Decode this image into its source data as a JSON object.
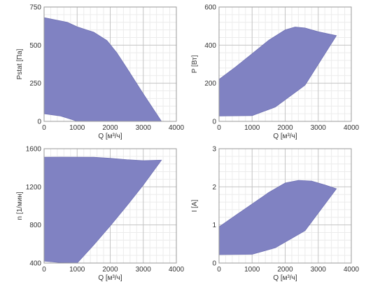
{
  "chart_data": [
    {
      "type": "area",
      "xlabel": "Q [м³/ч]",
      "ylabel": "Pstat [Па]",
      "xlim": [
        0,
        4000
      ],
      "ylim": [
        0,
        750
      ],
      "xticks": [
        0,
        1000,
        2000,
        3000,
        4000
      ],
      "yticks": [
        0,
        250,
        500,
        750
      ],
      "grid": true,
      "fill_color": "#8082c2",
      "upper": {
        "x": [
          0,
          700,
          1000,
          1500,
          1900,
          2200,
          2500,
          3000,
          3550
        ],
        "y": [
          680,
          650,
          620,
          585,
          530,
          450,
          350,
          180,
          0
        ]
      },
      "lower": {
        "x": [
          0,
          500,
          800,
          1000,
          3550
        ],
        "y": [
          50,
          35,
          15,
          0,
          0
        ]
      }
    },
    {
      "type": "area",
      "xlabel": "Q [м³/ч]",
      "ylabel": "P [Вт]",
      "xlim": [
        0,
        4000
      ],
      "ylim": [
        0,
        600
      ],
      "xticks": [
        0,
        1000,
        2000,
        3000,
        4000
      ],
      "yticks": [
        0,
        200,
        400,
        600
      ],
      "grid": true,
      "fill_color": "#8082c2",
      "upper": {
        "x": [
          0,
          500,
          1000,
          1500,
          2000,
          2300,
          2600,
          3000,
          3550
        ],
        "y": [
          220,
          285,
          355,
          425,
          480,
          495,
          490,
          470,
          450
        ]
      },
      "lower": {
        "x": [
          0,
          1000,
          1700,
          2600,
          3550
        ],
        "y": [
          28,
          30,
          75,
          190,
          450
        ]
      }
    },
    {
      "type": "area",
      "xlabel": "Q [м³/ч]",
      "ylabel": "n [1/мин]",
      "xlim": [
        0,
        4000
      ],
      "ylim": [
        400,
        1600
      ],
      "xticks": [
        0,
        1000,
        2000,
        3000,
        4000
      ],
      "yticks": [
        400,
        800,
        1200,
        1600
      ],
      "grid": true,
      "fill_color": "#8082c2",
      "upper": {
        "x": [
          0,
          500,
          1500,
          2000,
          2500,
          3000,
          3550
        ],
        "y": [
          1510,
          1512,
          1510,
          1500,
          1485,
          1475,
          1480
        ]
      },
      "lower": {
        "x": [
          0,
          500,
          1000,
          1500,
          2000,
          2500,
          3000,
          3550
        ],
        "y": [
          420,
          405,
          400,
          590,
          790,
          1000,
          1220,
          1480
        ]
      }
    },
    {
      "type": "area",
      "xlabel": "Q [м³/ч]",
      "ylabel": "I [A]",
      "xlim": [
        0,
        4000
      ],
      "ylim": [
        0,
        3
      ],
      "xticks": [
        0,
        1000,
        2000,
        3000,
        4000
      ],
      "yticks": [
        0,
        1,
        2,
        3
      ],
      "grid": true,
      "fill_color": "#8082c2",
      "upper": {
        "x": [
          0,
          500,
          1000,
          1500,
          2000,
          2400,
          2800,
          3200,
          3550
        ],
        "y": [
          0.95,
          1.25,
          1.55,
          1.85,
          2.1,
          2.17,
          2.15,
          2.05,
          1.95
        ]
      },
      "lower": {
        "x": [
          0,
          1000,
          1700,
          2600,
          3550
        ],
        "y": [
          0.22,
          0.23,
          0.4,
          0.85,
          1.95
        ]
      }
    }
  ]
}
